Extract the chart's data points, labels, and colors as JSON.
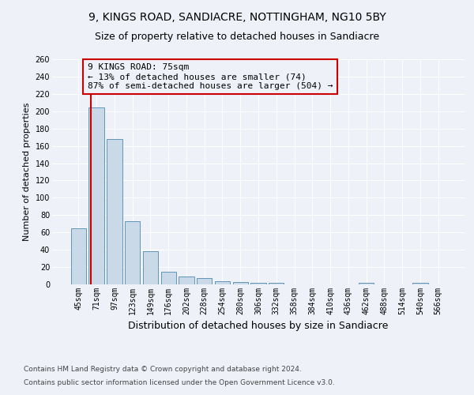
{
  "title": "9, KINGS ROAD, SANDIACRE, NOTTINGHAM, NG10 5BY",
  "subtitle": "Size of property relative to detached houses in Sandiacre",
  "xlabel": "Distribution of detached houses by size in Sandiacre",
  "ylabel": "Number of detached properties",
  "footnote1": "Contains HM Land Registry data © Crown copyright and database right 2024.",
  "footnote2": "Contains public sector information licensed under the Open Government Licence v3.0.",
  "categories": [
    "45sqm",
    "71sqm",
    "97sqm",
    "123sqm",
    "149sqm",
    "176sqm",
    "202sqm",
    "228sqm",
    "254sqm",
    "280sqm",
    "306sqm",
    "332sqm",
    "358sqm",
    "384sqm",
    "410sqm",
    "436sqm",
    "462sqm",
    "488sqm",
    "514sqm",
    "540sqm",
    "566sqm"
  ],
  "values": [
    65,
    204,
    168,
    73,
    38,
    15,
    9,
    7,
    4,
    3,
    2,
    2,
    0,
    0,
    0,
    0,
    2,
    0,
    0,
    2,
    0
  ],
  "bar_color": "#c9d9e8",
  "bar_edge_color": "#6096b8",
  "property_line_color": "#cc0000",
  "annotation_text": "9 KINGS ROAD: 75sqm\n← 13% of detached houses are smaller (74)\n87% of semi-detached houses are larger (504) →",
  "annotation_box_color": "#cc0000",
  "annotation_text_color": "#000000",
  "ylim": [
    0,
    260
  ],
  "yticks": [
    0,
    20,
    40,
    60,
    80,
    100,
    120,
    140,
    160,
    180,
    200,
    220,
    240,
    260
  ],
  "background_color": "#eef2f8",
  "grid_color": "#ffffff",
  "title_fontsize": 10,
  "subtitle_fontsize": 9,
  "xlabel_fontsize": 9,
  "ylabel_fontsize": 8,
  "tick_fontsize": 7,
  "annotation_fontsize": 8,
  "footnote_fontsize": 6.5
}
